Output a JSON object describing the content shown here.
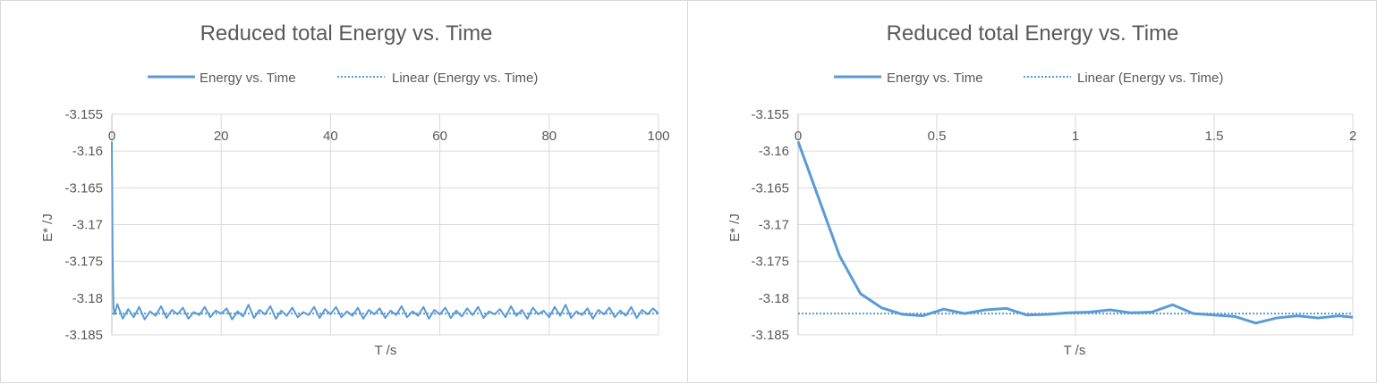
{
  "chart_data": [
    {
      "type": "line",
      "title": "Reduced total Energy vs. Time",
      "xlabel": "T /s",
      "ylabel": "E* /J",
      "xlim": [
        0,
        100
      ],
      "ylim": [
        -3.185,
        -3.155
      ],
      "x_ticks": [
        "0",
        "20",
        "40",
        "60",
        "80",
        "100"
      ],
      "y_ticks": [
        "-3.155",
        "-3.16",
        "-3.165",
        "-3.17",
        "-3.175",
        "-3.18",
        "-3.185"
      ],
      "grid": true,
      "legend_position": "top",
      "series": [
        {
          "name": "Energy vs. Time",
          "style": "solid",
          "color": "#5b9bd5",
          "x": [
            0,
            0.15,
            0.3,
            0.5,
            1,
            2,
            3,
            4,
            5,
            6,
            7,
            8,
            9,
            10,
            11,
            12,
            13,
            14,
            15,
            16,
            17,
            18,
            19,
            20,
            21,
            22,
            23,
            24,
            25,
            26,
            27,
            28,
            29,
            30,
            31,
            32,
            33,
            34,
            35,
            36,
            37,
            38,
            39,
            40,
            41,
            42,
            43,
            44,
            45,
            46,
            47,
            48,
            49,
            50,
            51,
            52,
            53,
            54,
            55,
            56,
            57,
            58,
            59,
            60,
            61,
            62,
            63,
            64,
            65,
            66,
            67,
            68,
            69,
            70,
            71,
            72,
            73,
            74,
            75,
            76,
            77,
            78,
            79,
            80,
            81,
            82,
            83,
            84,
            85,
            86,
            87,
            88,
            89,
            90,
            91,
            92,
            93,
            94,
            95,
            96,
            97,
            98,
            99,
            100
          ],
          "y": [
            -3.1587,
            -3.1745,
            -3.1813,
            -3.1822,
            -3.1808,
            -3.1828,
            -3.1815,
            -3.1826,
            -3.1812,
            -3.1829,
            -3.1818,
            -3.1824,
            -3.1811,
            -3.1827,
            -3.1816,
            -3.1822,
            -3.1813,
            -3.1828,
            -3.1819,
            -3.1823,
            -3.1812,
            -3.1826,
            -3.1817,
            -3.1821,
            -3.1814,
            -3.1829,
            -3.1818,
            -3.1825,
            -3.1809,
            -3.1827,
            -3.1816,
            -3.1822,
            -3.1811,
            -3.1828,
            -3.1817,
            -3.1824,
            -3.1813,
            -3.1826,
            -3.1819,
            -3.1823,
            -3.1812,
            -3.1827,
            -3.1815,
            -3.1822,
            -3.1812,
            -3.1826,
            -3.1818,
            -3.1824,
            -3.1813,
            -3.1828,
            -3.1816,
            -3.1822,
            -3.1814,
            -3.1827,
            -3.1817,
            -3.1823,
            -3.1811,
            -3.1826,
            -3.1818,
            -3.1824,
            -3.1812,
            -3.1828,
            -3.1816,
            -3.1822,
            -3.1813,
            -3.1827,
            -3.1817,
            -3.1825,
            -3.1814,
            -3.1823,
            -3.1812,
            -3.1827,
            -3.1818,
            -3.1822,
            -3.1815,
            -3.1826,
            -3.1811,
            -3.1824,
            -3.1816,
            -3.1828,
            -3.1813,
            -3.1822,
            -3.1817,
            -3.1826,
            -3.1812,
            -3.1824,
            -3.1809,
            -3.1827,
            -3.1818,
            -3.1823,
            -3.1814,
            -3.1828,
            -3.1816,
            -3.1822,
            -3.1813,
            -3.1826,
            -3.1817,
            -3.1824,
            -3.1812,
            -3.1827,
            -3.1816,
            -3.1822,
            -3.1814,
            -3.1821
          ]
        },
        {
          "name": "Linear (Energy vs. Time)",
          "style": "dotted",
          "color": "#5b9bd5",
          "x": [
            0,
            100
          ],
          "y": [
            -3.1821,
            -3.1821
          ]
        }
      ]
    },
    {
      "type": "line",
      "title": "Reduced total Energy vs. Time",
      "xlabel": "T /s",
      "ylabel": "E* /J",
      "xlim": [
        0,
        2
      ],
      "ylim": [
        -3.185,
        -3.155
      ],
      "x_ticks": [
        "0",
        "0.5",
        "1",
        "1.5",
        "2"
      ],
      "y_ticks": [
        "-3.155",
        "-3.16",
        "-3.165",
        "-3.17",
        "-3.175",
        "-3.18",
        "-3.185"
      ],
      "grid": true,
      "legend_position": "top",
      "series": [
        {
          "name": "Energy vs. Time",
          "style": "solid",
          "color": "#5b9bd5",
          "x": [
            0,
            0.075,
            0.15,
            0.225,
            0.3,
            0.375,
            0.45,
            0.525,
            0.6,
            0.675,
            0.75,
            0.825,
            0.9,
            0.975,
            1.05,
            1.125,
            1.2,
            1.275,
            1.35,
            1.425,
            1.5,
            1.575,
            1.65,
            1.725,
            1.8,
            1.875,
            1.95,
            2.0
          ],
          "y": [
            -3.1587,
            -3.1665,
            -3.1743,
            -3.1794,
            -3.1813,
            -3.1822,
            -3.1824,
            -3.1815,
            -3.1821,
            -3.1816,
            -3.1814,
            -3.1823,
            -3.1822,
            -3.182,
            -3.1819,
            -3.1816,
            -3.182,
            -3.1819,
            -3.1809,
            -3.1821,
            -3.1823,
            -3.1825,
            -3.1834,
            -3.1827,
            -3.1824,
            -3.1827,
            -3.1824,
            -3.1826
          ]
        },
        {
          "name": "Linear (Energy vs. Time)",
          "style": "dotted",
          "color": "#5b9bd5",
          "x": [
            0,
            2
          ],
          "y": [
            -3.1821,
            -3.1821
          ]
        }
      ]
    }
  ]
}
